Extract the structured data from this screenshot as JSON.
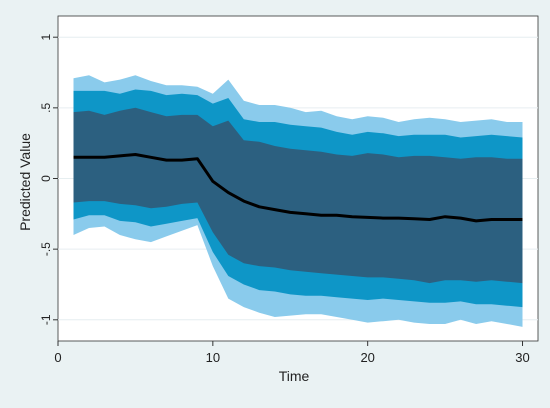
{
  "chart_data": {
    "type": "area",
    "title": "",
    "xlabel": "Time",
    "ylabel": "Predicted Value",
    "xlim": [
      0,
      31
    ],
    "ylim": [
      -1.15,
      1.15
    ],
    "x_ticks": [
      0,
      10,
      20,
      30
    ],
    "x_tick_labels": [
      "0",
      "10",
      "20",
      "30"
    ],
    "y_ticks": [
      -1,
      -0.5,
      0,
      0.5,
      1
    ],
    "y_tick_labels": [
      "-1",
      "-.5",
      "0",
      ".5",
      "1"
    ],
    "grid": "horizontal",
    "legend": "none",
    "x": [
      1,
      2,
      3,
      4,
      5,
      6,
      7,
      8,
      9,
      10,
      11,
      12,
      13,
      14,
      15,
      16,
      17,
      18,
      19,
      20,
      21,
      22,
      23,
      24,
      25,
      26,
      27,
      28,
      29,
      30
    ],
    "mean": [
      0.15,
      0.15,
      0.15,
      0.16,
      0.17,
      0.15,
      0.13,
      0.13,
      0.14,
      -0.02,
      -0.1,
      -0.16,
      -0.2,
      -0.22,
      -0.24,
      -0.25,
      -0.26,
      -0.26,
      -0.27,
      -0.275,
      -0.28,
      -0.28,
      -0.285,
      -0.29,
      -0.27,
      -0.28,
      -0.3,
      -0.29,
      -0.29,
      -0.29
    ],
    "bands": [
      {
        "level": "outer",
        "color": "#8acbec",
        "upper": [
          0.71,
          0.73,
          0.68,
          0.7,
          0.73,
          0.69,
          0.66,
          0.66,
          0.65,
          0.6,
          0.7,
          0.55,
          0.52,
          0.52,
          0.5,
          0.47,
          0.48,
          0.44,
          0.42,
          0.44,
          0.43,
          0.4,
          0.42,
          0.43,
          0.42,
          0.4,
          0.41,
          0.42,
          0.4,
          0.4
        ],
        "lower": [
          -0.4,
          -0.35,
          -0.34,
          -0.4,
          -0.43,
          -0.45,
          -0.41,
          -0.37,
          -0.33,
          -0.62,
          -0.85,
          -0.91,
          -0.95,
          -0.98,
          -0.97,
          -0.96,
          -0.96,
          -0.98,
          -1.0,
          -1.02,
          -1.01,
          -1.0,
          -1.02,
          -1.03,
          -1.03,
          -1.0,
          -1.03,
          -1.01,
          -1.03,
          -1.05
        ]
      },
      {
        "level": "middle",
        "color": "#0e96c7",
        "upper": [
          0.62,
          0.62,
          0.62,
          0.6,
          0.63,
          0.62,
          0.59,
          0.6,
          0.59,
          0.53,
          0.57,
          0.42,
          0.4,
          0.4,
          0.38,
          0.37,
          0.36,
          0.33,
          0.31,
          0.33,
          0.32,
          0.3,
          0.31,
          0.31,
          0.31,
          0.29,
          0.3,
          0.31,
          0.3,
          0.29
        ],
        "lower": [
          -0.29,
          -0.26,
          -0.26,
          -0.3,
          -0.31,
          -0.34,
          -0.32,
          -0.3,
          -0.28,
          -0.52,
          -0.69,
          -0.75,
          -0.79,
          -0.8,
          -0.82,
          -0.83,
          -0.83,
          -0.84,
          -0.85,
          -0.86,
          -0.85,
          -0.86,
          -0.87,
          -0.88,
          -0.88,
          -0.87,
          -0.89,
          -0.89,
          -0.9,
          -0.91
        ]
      },
      {
        "level": "inner",
        "color": "#2c6080",
        "upper": [
          0.47,
          0.48,
          0.45,
          0.48,
          0.5,
          0.47,
          0.44,
          0.45,
          0.45,
          0.37,
          0.41,
          0.27,
          0.26,
          0.23,
          0.21,
          0.2,
          0.19,
          0.17,
          0.16,
          0.18,
          0.17,
          0.15,
          0.16,
          0.16,
          0.15,
          0.14,
          0.15,
          0.15,
          0.14,
          0.14
        ],
        "lower": [
          -0.17,
          -0.16,
          -0.16,
          -0.18,
          -0.19,
          -0.21,
          -0.2,
          -0.18,
          -0.17,
          -0.38,
          -0.54,
          -0.6,
          -0.62,
          -0.63,
          -0.65,
          -0.66,
          -0.67,
          -0.68,
          -0.69,
          -0.7,
          -0.7,
          -0.71,
          -0.72,
          -0.74,
          -0.72,
          -0.72,
          -0.73,
          -0.72,
          -0.73,
          -0.74
        ]
      }
    ],
    "colors": {
      "background": "#eaf2f3",
      "plot_background": "#ffffff",
      "mean_line": "#000000",
      "grid": "#e6eef0"
    }
  }
}
